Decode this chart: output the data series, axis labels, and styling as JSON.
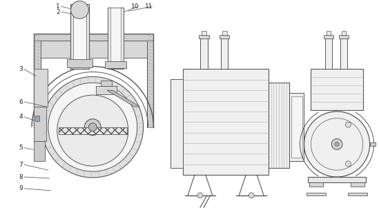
{
  "line_color": "#555555",
  "line_color_dark": "#333333",
  "fill_wall": "#d0d0d0",
  "fill_light": "#f0f0f0",
  "fill_mid": "#e0e0e0",
  "fill_hatch_color": "#c8c8c8",
  "label_fs": 6.5,
  "label_color": "#222222",
  "labels": [
    "1",
    "2",
    "3",
    "4",
    "5",
    "6",
    "7",
    "8",
    "9",
    "10",
    "11"
  ]
}
